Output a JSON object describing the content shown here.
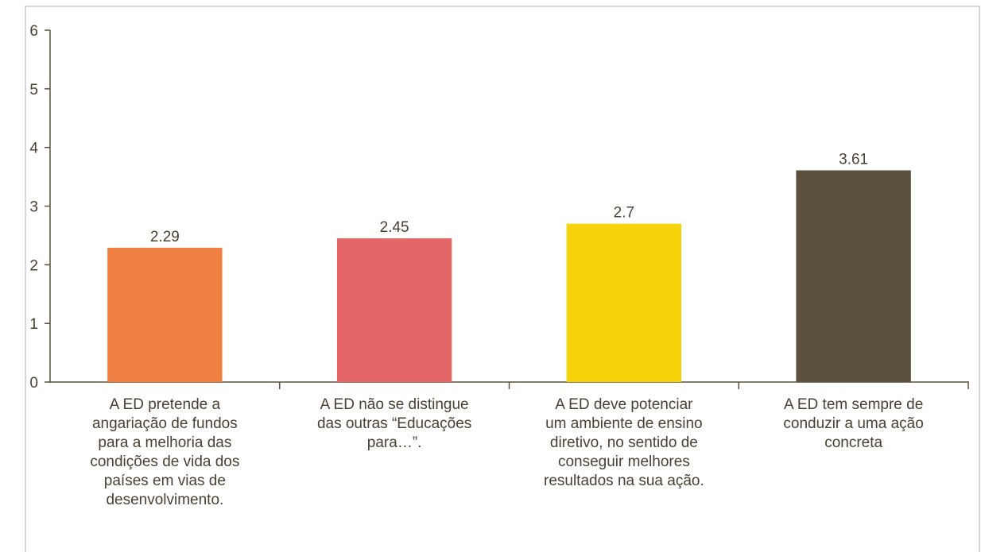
{
  "chart_data": {
    "type": "bar",
    "categories": [
      [
        "A ED pretende a",
        "angariação de fundos",
        "para a melhoria das",
        "condições de vida dos",
        "países em vias de",
        "desenvolvimento."
      ],
      [
        "A ED não se distingue",
        "das outras “Educações",
        "para…”."
      ],
      [
        "A ED deve potenciar",
        "um ambiente de ensino",
        "diretivo, no sentido de",
        "conseguir melhores",
        "resultados na sua ação."
      ],
      [
        "A ED tem sempre de",
        "conduzir a uma ação",
        "concreta"
      ]
    ],
    "values": [
      2.29,
      2.45,
      2.7,
      3.61
    ],
    "colors": [
      "#f07f42",
      "#e36565",
      "#f7d30b",
      "#5b503c"
    ],
    "ylim": [
      0,
      6
    ],
    "yticks": [
      0,
      1,
      2,
      3,
      4,
      5,
      6
    ],
    "grid": false
  }
}
